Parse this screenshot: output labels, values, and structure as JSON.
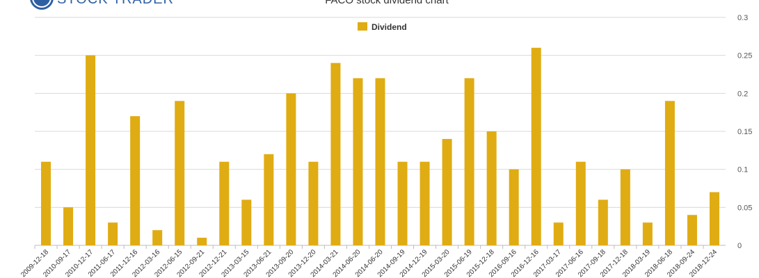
{
  "brand": {
    "name": "STOCK TRADER"
  },
  "chart_data": {
    "type": "bar",
    "title": "FACO stock dividend chart",
    "legend": {
      "label": "Dividend",
      "position": "top-center"
    },
    "series": [
      {
        "name": "Dividend",
        "color": "#e0ac13",
        "values": [
          0.11,
          0.05,
          0.25,
          0.03,
          0.17,
          0.02,
          0.19,
          0.01,
          0.11,
          0.06,
          0.12,
          0.2,
          0.11,
          0.24,
          0.22,
          0.22,
          0.11,
          0.11,
          0.14,
          0.22,
          0.15,
          0.1,
          0.26,
          0.03,
          0.11,
          0.06,
          0.1,
          0.03,
          0.19,
          0.04,
          0.07
        ]
      }
    ],
    "categories": [
      "2009-12-18",
      "2010-09-17",
      "2010-12-17",
      "2011-06-17",
      "2011-12-16",
      "2012-03-16",
      "2012-06-15",
      "2012-09-21",
      "2012-12-21",
      "2013-03-15",
      "2013-06-21",
      "2013-09-20",
      "2013-12-20",
      "2014-03-21",
      "2014-06-20",
      "2014-06-20",
      "2014-09-19",
      "2014-12-19",
      "2015-03-20",
      "2015-06-19",
      "2015-12-18",
      "2016-09-16",
      "2016-12-16",
      "2017-03-17",
      "2017-06-16",
      "2017-09-18",
      "2017-12-18",
      "2018-03-19",
      "2018-06-18",
      "2018-09-24",
      "2018-12-24"
    ],
    "y_ticks": [
      "0",
      "0.05",
      "0.1",
      "0.15",
      "0.2",
      "0.25",
      "0.3"
    ],
    "ylim": [
      0,
      0.3
    ],
    "grid": true,
    "y_axis_side": "right"
  }
}
